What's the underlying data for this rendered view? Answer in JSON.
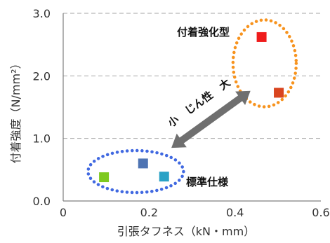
{
  "chart_data": {
    "type": "scatter",
    "xlabel": "引張タフネス（kN・mm）",
    "ylabel": "付着強度（N/mm²）",
    "xlim": [
      0,
      0.6
    ],
    "ylim": [
      0,
      3.0
    ],
    "x_ticks": [
      "0",
      "0.2",
      "0.4",
      "0.6"
    ],
    "y_ticks": [
      "0.0",
      "1.0",
      "2.0",
      "3.0"
    ],
    "grid": "horizontal dashed",
    "series": [
      {
        "color": "#7ec91e",
        "points": [
          {
            "x": 0.095,
            "y": 0.38
          }
        ]
      },
      {
        "color": "#4e74b3",
        "points": [
          {
            "x": 0.186,
            "y": 0.6
          }
        ]
      },
      {
        "color": "#2aa2c6",
        "points": [
          {
            "x": 0.235,
            "y": 0.39
          }
        ]
      },
      {
        "color": "#ef1c1c",
        "points": [
          {
            "x": 0.462,
            "y": 2.62
          }
        ]
      },
      {
        "color": "#d9451f",
        "points": [
          {
            "x": 0.502,
            "y": 1.73
          }
        ]
      }
    ],
    "groups": [
      {
        "label": "標準仕様",
        "color": "#4169e1"
      },
      {
        "label": "付着強化型",
        "color": "#f7931e"
      }
    ],
    "arrow_label": "小　じん性　大",
    "arrow_color": "#6f6f6f"
  }
}
